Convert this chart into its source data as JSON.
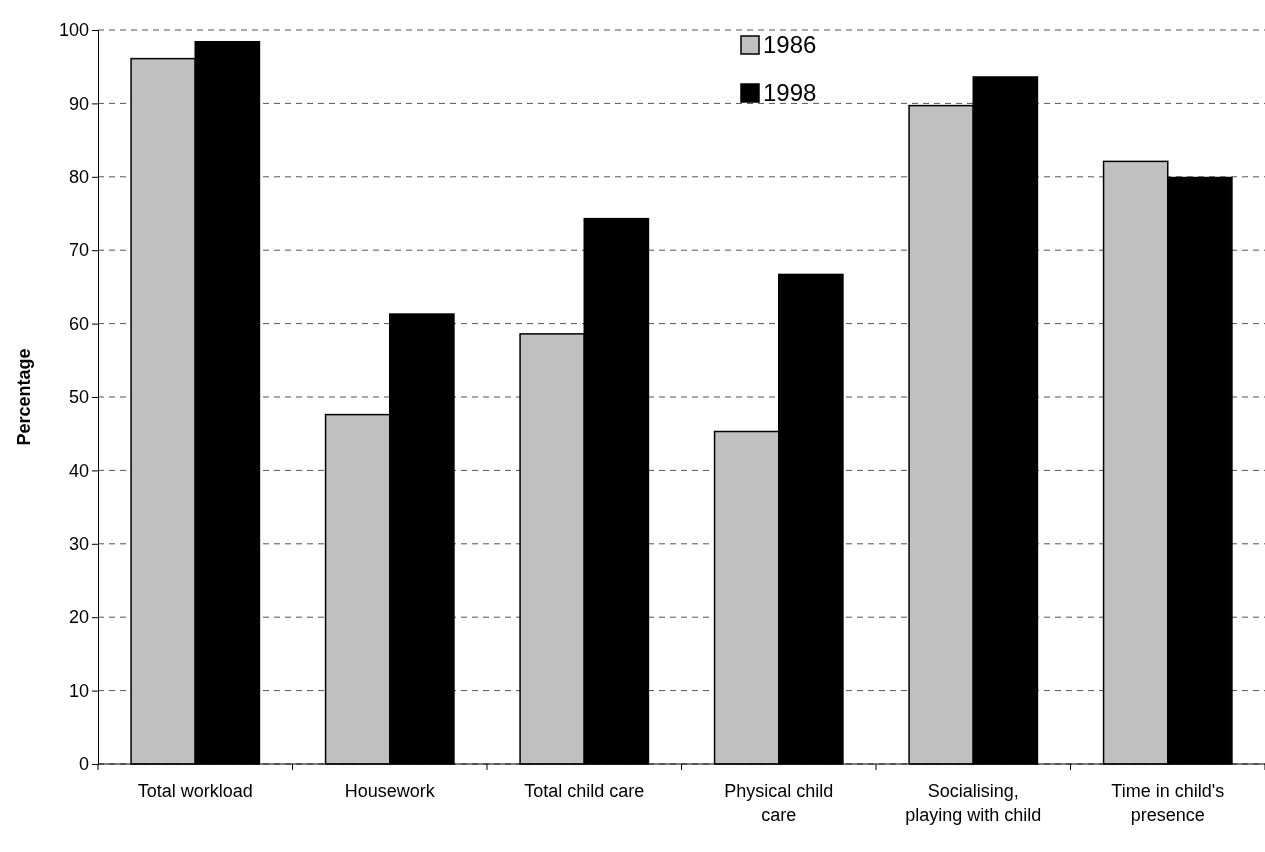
{
  "chart_data": {
    "type": "bar",
    "ylabel": "Percentage",
    "categories": [
      "Total workload",
      "Housework",
      "Total child care",
      "Physical child care",
      "Socialising, playing with child",
      "Time in child's presence"
    ],
    "series": [
      {
        "name": "1986",
        "color": "#c0c0c0",
        "values": [
          96.1,
          47.6,
          58.6,
          45.3,
          89.7,
          82.1
        ]
      },
      {
        "name": "1998",
        "color": "#000000",
        "values": [
          98.4,
          61.3,
          74.3,
          66.7,
          93.6,
          79.9
        ]
      }
    ],
    "ylim": [
      0,
      100
    ],
    "yticks": [
      0,
      10,
      20,
      30,
      40,
      50,
      60,
      70,
      80,
      90,
      100
    ],
    "grid": "y",
    "legend": "top"
  }
}
